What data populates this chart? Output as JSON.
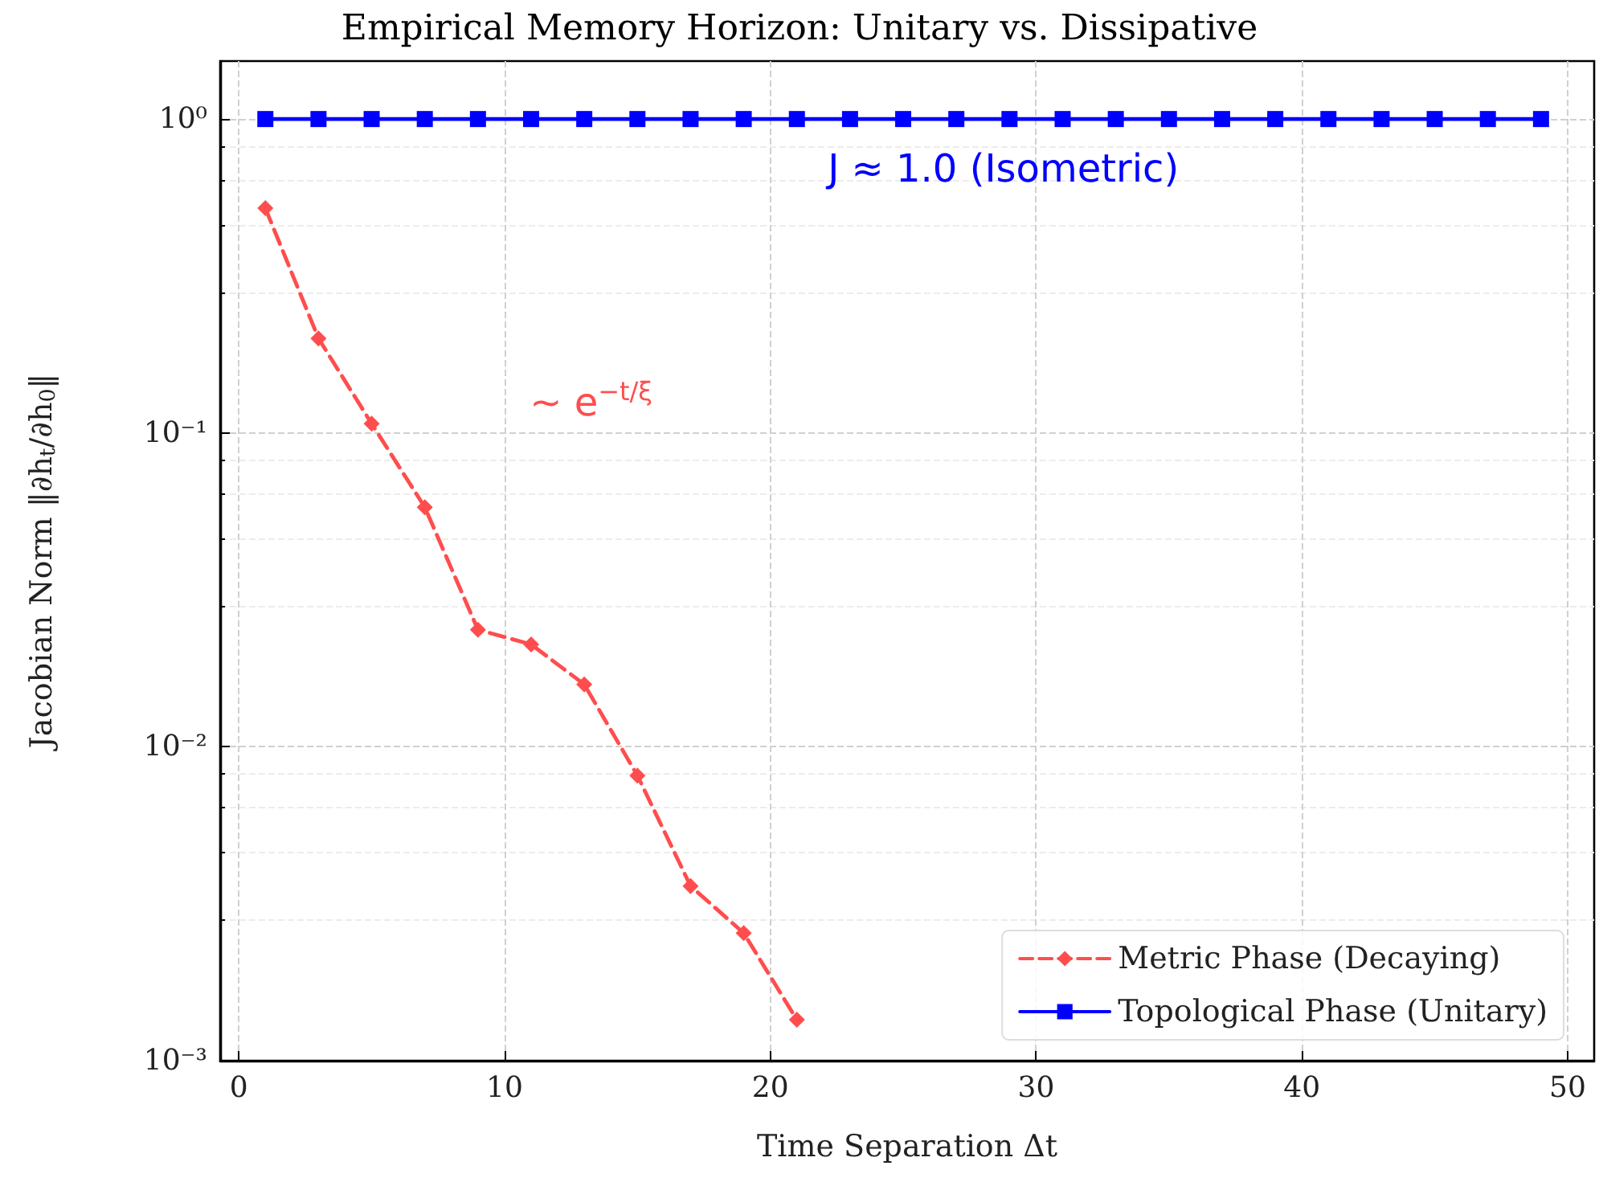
{
  "chart_data": {
    "type": "line",
    "title": "Empirical Memory Horizon: Unitary vs. Dissipative",
    "xlabel": "Time Separation Δt",
    "ylabel": "Jacobian Norm ‖∂h$_{t}$/∂h$_{0}$‖",
    "series": [
      {
        "name": "Metric Phase (Decaying)",
        "color": "#ff4d4d",
        "marker": "diamond",
        "line_style": "dashed",
        "x": [
          1,
          3,
          5,
          7,
          9,
          11,
          13,
          15,
          17,
          19,
          21
        ],
        "values": [
          0.52,
          0.2,
          0.107,
          0.058,
          0.0236,
          0.0212,
          0.0158,
          0.0081,
          0.0036,
          0.00255,
          0.00135
        ]
      },
      {
        "name": "Topological Phase (Unitary)",
        "color": "#0000ff",
        "marker": "square",
        "line_style": "solid",
        "x": [
          1,
          3,
          5,
          7,
          9,
          11,
          13,
          15,
          17,
          19,
          21,
          23,
          25,
          27,
          29,
          31,
          33,
          35,
          37,
          39,
          41,
          43,
          45,
          47,
          49
        ],
        "values": [
          1,
          1,
          1,
          1,
          1,
          1,
          1,
          1,
          1,
          1,
          1,
          1,
          1,
          1,
          1,
          1,
          1,
          1,
          1,
          1,
          1,
          1,
          1,
          1,
          1
        ]
      }
    ],
    "annotations": [
      "J ≈ 1.0 (Isometric)",
      "∼ e$^{−t/ξ}$"
    ],
    "xlim": [
      -0.7,
      51
    ],
    "xticks": [
      0,
      10,
      20,
      30,
      40,
      50
    ],
    "ylim": [
      0.001,
      1.53
    ],
    "yticks": [
      {
        "value": 0.001,
        "label": "10⁻³"
      },
      {
        "value": 0.01,
        "label": "10⁻²"
      },
      {
        "value": 0.1,
        "label": "10⁻¹"
      },
      {
        "value": 1,
        "label": "10⁰"
      }
    ],
    "log": "y",
    "grid": true,
    "legend": "bottom right"
  }
}
